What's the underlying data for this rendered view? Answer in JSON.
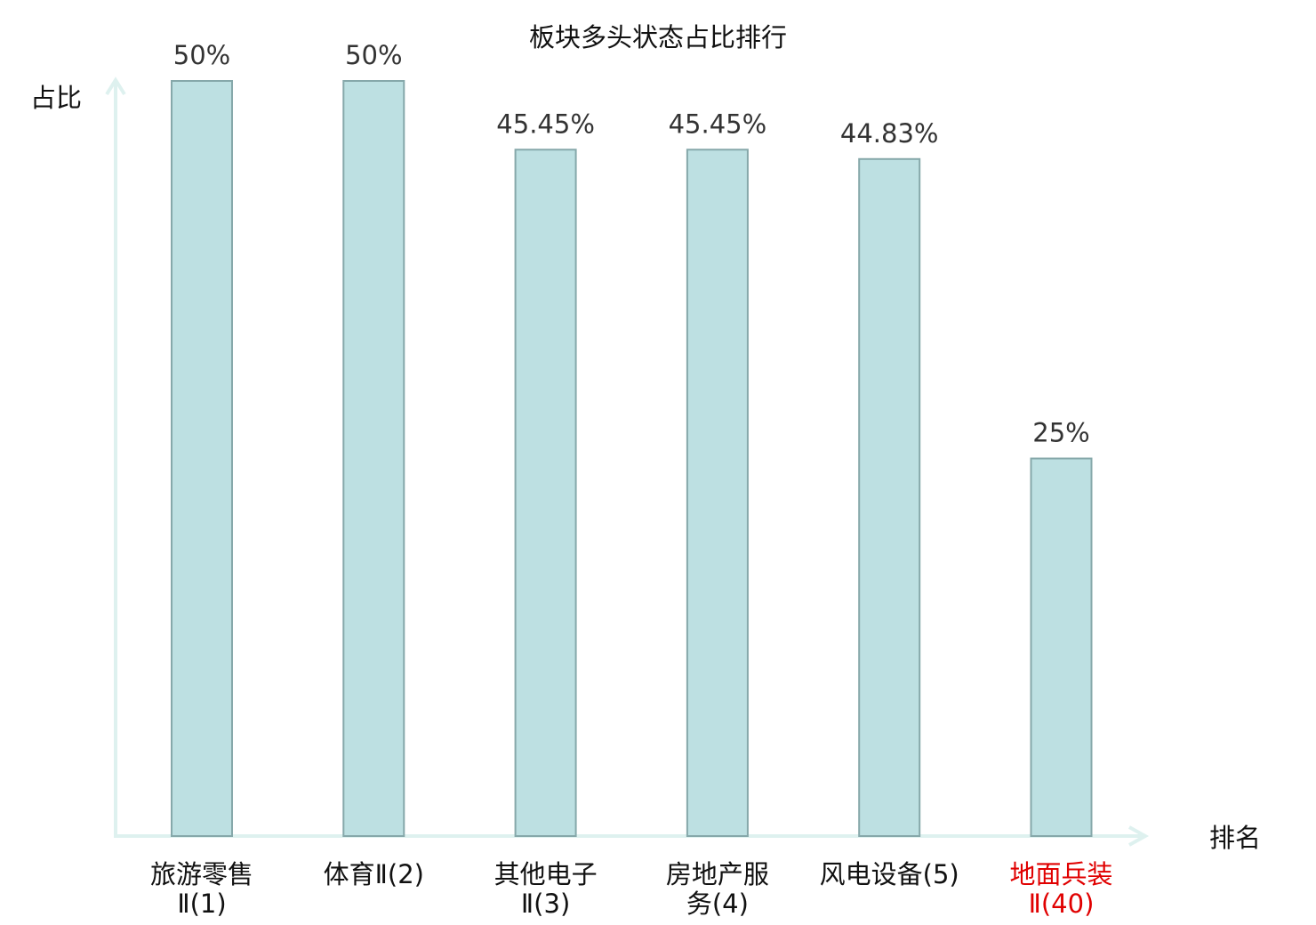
{
  "chart_data": {
    "type": "bar",
    "title": "板块多头状态占比排行",
    "xlabel": "排名",
    "ylabel": "占比",
    "ylim": [
      0,
      50
    ],
    "grid": false,
    "categories": [
      {
        "lines": [
          "旅游零售",
          "Ⅱ(1)"
        ],
        "highlight": false
      },
      {
        "lines": [
          "体育Ⅱ(2)"
        ],
        "highlight": false
      },
      {
        "lines": [
          "其他电子",
          "Ⅱ(3)"
        ],
        "highlight": false
      },
      {
        "lines": [
          "房地产服",
          "务(4)"
        ],
        "highlight": false
      },
      {
        "lines": [
          "风电设备(5)"
        ],
        "highlight": false
      },
      {
        "lines": [
          "地面兵装",
          "Ⅱ(40)"
        ],
        "highlight": true
      }
    ],
    "values": [
      50,
      50,
      45.45,
      45.45,
      44.83,
      25
    ],
    "value_labels": [
      "50%",
      "50%",
      "45.45%",
      "45.45%",
      "44.83%",
      "25%"
    ]
  },
  "colors": {
    "bar_fill": "#bde0e2",
    "bar_stroke": "#86a8aa",
    "axis": "#def1ef",
    "label": "#111111",
    "highlight_label": "#e00000",
    "value_label": "#333333"
  }
}
